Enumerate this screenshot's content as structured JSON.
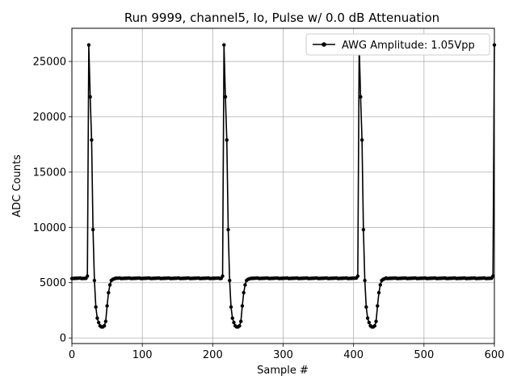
{
  "chart_data": {
    "type": "line",
    "title": "Run 9999, channel5, Io, Pulse w/ 0.0 dB Attenuation",
    "xlabel": "Sample #",
    "ylabel": "ADC Counts",
    "xlim": [
      0,
      600
    ],
    "ylim": [
      -500,
      28000
    ],
    "xticks": [
      0,
      100,
      200,
      300,
      400,
      500,
      600
    ],
    "yticks": [
      0,
      5000,
      10000,
      15000,
      20000,
      25000
    ],
    "grid": true,
    "legend_position": "top-right",
    "baseline": 5400,
    "pulse_starts": [
      24,
      216,
      408,
      600
    ],
    "pulse_shape": [
      26500,
      21800,
      17900,
      9800,
      5200,
      2800,
      1800,
      1400,
      1100,
      1000,
      1000,
      1100,
      1500,
      2900,
      4100,
      4800,
      5200,
      5300,
      5350
    ],
    "series": [
      {
        "name": "AWG Amplitude: 1.05Vpp",
        "color": "#000000",
        "marker": "circle"
      }
    ]
  }
}
